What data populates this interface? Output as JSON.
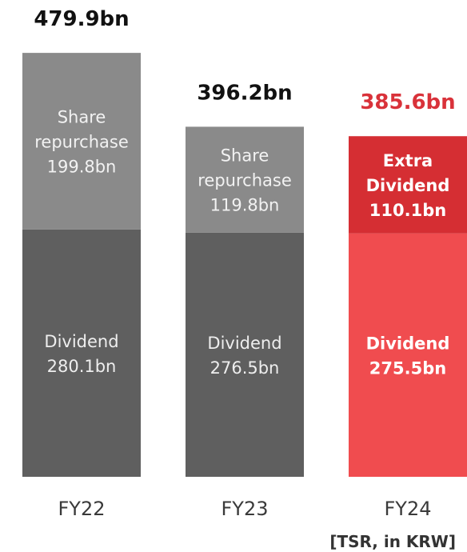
{
  "chart_data": {
    "type": "bar",
    "stacked": true,
    "categories": [
      "FY22",
      "FY23",
      "FY24"
    ],
    "totals": [
      {
        "label": "479.9bn",
        "color": "#111111"
      },
      {
        "label": "396.2bn",
        "color": "#111111"
      },
      {
        "label": "385.6bn",
        "color": "#d9323a"
      }
    ],
    "segments": [
      [
        {
          "lines": [
            "Dividend",
            "280.1bn"
          ],
          "value": 280.1,
          "color": "#5f5f5f",
          "text_color": "#eeeeee",
          "bold": false
        },
        {
          "lines": [
            "Share",
            "repurchase",
            "199.8bn"
          ],
          "value": 199.8,
          "color": "#8a8a8a",
          "text_color": "#f2f2f2",
          "bold": false
        }
      ],
      [
        {
          "lines": [
            "Dividend",
            "276.5bn"
          ],
          "value": 276.5,
          "color": "#5f5f5f",
          "text_color": "#eeeeee",
          "bold": false
        },
        {
          "lines": [
            "Share",
            "repurchase",
            "119.8bn"
          ],
          "value": 119.8,
          "color": "#8a8a8a",
          "text_color": "#f2f2f2",
          "bold": false
        }
      ],
      [
        {
          "lines": [
            "Dividend",
            "275.5bn"
          ],
          "value": 275.5,
          "color": "#f04c4f",
          "text_color": "#ffffff",
          "bold": true
        },
        {
          "lines": [
            "Extra",
            "Dividend",
            "110.1bn"
          ],
          "value": 110.1,
          "color": "#d52e33",
          "text_color": "#ffffff",
          "bold": true
        }
      ]
    ],
    "note": "[TSR, in KRW]",
    "ylim": [
      0,
      480
    ]
  }
}
